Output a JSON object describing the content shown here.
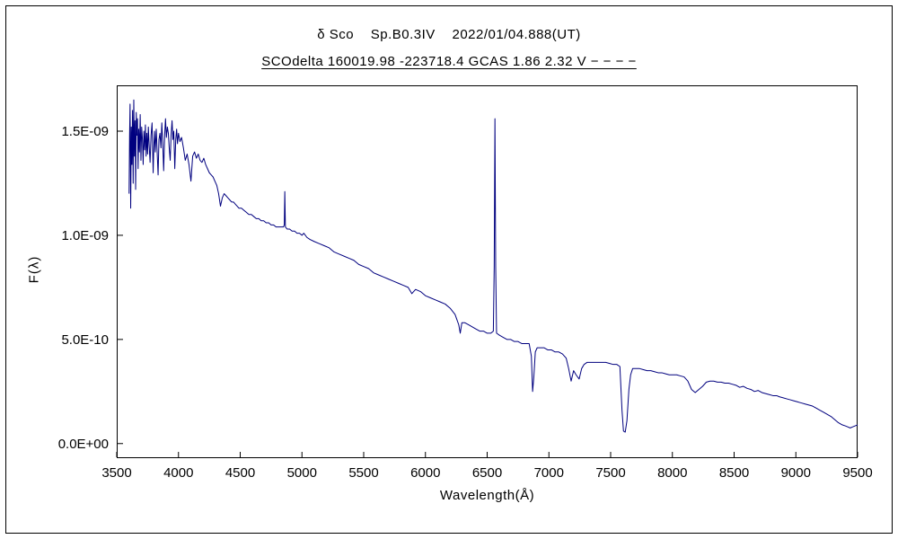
{
  "chart_data": {
    "type": "line",
    "title": "δ Sco    Sp.B0.3IV    2022/01/04.888(UT)",
    "subtitle": "SCOdelta 160019.98 -223718.4 GCAS 1.86 2.32 V − − − −",
    "xlabel": "Wavelength(Å)",
    "ylabel": "F(λ)",
    "line_color": "#00007f",
    "legend": "none",
    "grid": false,
    "xlim": [
      3500,
      9500
    ],
    "x_ticks": [
      3500,
      4000,
      4500,
      5000,
      5500,
      6000,
      6500,
      7000,
      7500,
      8000,
      8500,
      9000,
      9500
    ],
    "ylim_1e10": [
      -0.7,
      17.2
    ],
    "y_ticks": [
      {
        "value_1e10": 0,
        "label": "0.0E+00"
      },
      {
        "value_1e10": 5,
        "label": "5.0E-10"
      },
      {
        "value_1e10": 10,
        "label": "1.0E-09"
      },
      {
        "value_1e10": 15,
        "label": "1.5E-09"
      }
    ],
    "flux_unit_scale": "1e-10",
    "points": [
      [
        3600,
        12.0
      ],
      [
        3604,
        14.8
      ],
      [
        3608,
        16.3
      ],
      [
        3613,
        11.3
      ],
      [
        3618,
        15.2
      ],
      [
        3623,
        13.4
      ],
      [
        3628,
        16.0
      ],
      [
        3633,
        12.5
      ],
      [
        3638,
        16.5
      ],
      [
        3643,
        13.8
      ],
      [
        3648,
        15.5
      ],
      [
        3653,
        12.2
      ],
      [
        3658,
        15.9
      ],
      [
        3663,
        14.8
      ],
      [
        3668,
        15.6
      ],
      [
        3673,
        13.2
      ],
      [
        3678,
        15.1
      ],
      [
        3684,
        14.0
      ],
      [
        3690,
        15.8
      ],
      [
        3696,
        13.6
      ],
      [
        3702,
        15.2
      ],
      [
        3708,
        14.6
      ],
      [
        3714,
        13.4
      ],
      [
        3720,
        15.0
      ],
      [
        3726,
        14.1
      ],
      [
        3732,
        15.3
      ],
      [
        3738,
        13.8
      ],
      [
        3744,
        14.9
      ],
      [
        3750,
        13.9
      ],
      [
        3756,
        15.2
      ],
      [
        3762,
        14.4
      ],
      [
        3770,
        13.5
      ],
      [
        3778,
        14.8
      ],
      [
        3786,
        15.4
      ],
      [
        3795,
        13.0
      ],
      [
        3800,
        14.2
      ],
      [
        3806,
        15.0
      ],
      [
        3812,
        14.0
      ],
      [
        3820,
        15.1
      ],
      [
        3828,
        13.9
      ],
      [
        3835,
        12.9
      ],
      [
        3842,
        14.6
      ],
      [
        3850,
        14.9
      ],
      [
        3858,
        14.2
      ],
      [
        3865,
        15.4
      ],
      [
        3872,
        14.5
      ],
      [
        3880,
        13.1
      ],
      [
        3888,
        14.8
      ],
      [
        3895,
        15.6
      ],
      [
        3902,
        14.7
      ],
      [
        3910,
        15.2
      ],
      [
        3918,
        14.9
      ],
      [
        3925,
        14.2
      ],
      [
        3933,
        13.6
      ],
      [
        3940,
        14.8
      ],
      [
        3948,
        15.5
      ],
      [
        3955,
        14.6
      ],
      [
        3962,
        15.0
      ],
      [
        3970,
        13.2
      ],
      [
        3978,
        14.6
      ],
      [
        3985,
        15.1
      ],
      [
        3992,
        14.4
      ],
      [
        4000,
        14.9
      ],
      [
        4012,
        14.5
      ],
      [
        4025,
        14.7
      ],
      [
        4040,
        14.2
      ],
      [
        4055,
        13.6
      ],
      [
        4070,
        13.9
      ],
      [
        4085,
        13.4
      ],
      [
        4101,
        12.6
      ],
      [
        4115,
        13.8
      ],
      [
        4130,
        14.0
      ],
      [
        4145,
        13.7
      ],
      [
        4160,
        13.9
      ],
      [
        4175,
        13.6
      ],
      [
        4190,
        13.5
      ],
      [
        4205,
        13.7
      ],
      [
        4220,
        13.4
      ],
      [
        4235,
        13.2
      ],
      [
        4250,
        13.0
      ],
      [
        4265,
        12.9
      ],
      [
        4280,
        12.8
      ],
      [
        4295,
        12.6
      ],
      [
        4310,
        12.4
      ],
      [
        4325,
        12.0
      ],
      [
        4340,
        11.4
      ],
      [
        4355,
        11.8
      ],
      [
        4370,
        12.0
      ],
      [
        4385,
        11.9
      ],
      [
        4400,
        11.8
      ],
      [
        4415,
        11.7
      ],
      [
        4430,
        11.6
      ],
      [
        4445,
        11.6
      ],
      [
        4460,
        11.5
      ],
      [
        4475,
        11.4
      ],
      [
        4490,
        11.3
      ],
      [
        4510,
        11.3
      ],
      [
        4530,
        11.2
      ],
      [
        4550,
        11.1
      ],
      [
        4570,
        11.0
      ],
      [
        4590,
        11.0
      ],
      [
        4610,
        10.9
      ],
      [
        4630,
        10.8
      ],
      [
        4650,
        10.8
      ],
      [
        4670,
        10.7
      ],
      [
        4690,
        10.7
      ],
      [
        4710,
        10.6
      ],
      [
        4730,
        10.6
      ],
      [
        4750,
        10.5
      ],
      [
        4770,
        10.5
      ],
      [
        4790,
        10.4
      ],
      [
        4810,
        10.4
      ],
      [
        4830,
        10.4
      ],
      [
        4850,
        10.4
      ],
      [
        4857,
        10.5
      ],
      [
        4861,
        12.1
      ],
      [
        4866,
        10.4
      ],
      [
        4880,
        10.3
      ],
      [
        4900,
        10.3
      ],
      [
        4920,
        10.2
      ],
      [
        4940,
        10.2
      ],
      [
        4960,
        10.1
      ],
      [
        4980,
        10.1
      ],
      [
        5000,
        10.0
      ],
      [
        5015,
        10.1
      ],
      [
        5040,
        9.9
      ],
      [
        5065,
        9.8
      ],
      [
        5100,
        9.7
      ],
      [
        5140,
        9.6
      ],
      [
        5180,
        9.5
      ],
      [
        5220,
        9.4
      ],
      [
        5260,
        9.2
      ],
      [
        5300,
        9.1
      ],
      [
        5340,
        9.0
      ],
      [
        5380,
        8.9
      ],
      [
        5420,
        8.8
      ],
      [
        5460,
        8.6
      ],
      [
        5500,
        8.5
      ],
      [
        5540,
        8.4
      ],
      [
        5580,
        8.2
      ],
      [
        5620,
        8.1
      ],
      [
        5660,
        8.0
      ],
      [
        5700,
        7.9
      ],
      [
        5740,
        7.8
      ],
      [
        5780,
        7.7
      ],
      [
        5820,
        7.6
      ],
      [
        5860,
        7.5
      ],
      [
        5890,
        7.2
      ],
      [
        5920,
        7.4
      ],
      [
        5960,
        7.3
      ],
      [
        6000,
        7.1
      ],
      [
        6040,
        7.0
      ],
      [
        6080,
        6.9
      ],
      [
        6120,
        6.8
      ],
      [
        6160,
        6.7
      ],
      [
        6200,
        6.5
      ],
      [
        6240,
        6.2
      ],
      [
        6270,
        5.7
      ],
      [
        6282,
        5.3
      ],
      [
        6295,
        5.8
      ],
      [
        6320,
        5.8
      ],
      [
        6350,
        5.7
      ],
      [
        6380,
        5.6
      ],
      [
        6410,
        5.5
      ],
      [
        6440,
        5.4
      ],
      [
        6470,
        5.4
      ],
      [
        6500,
        5.3
      ],
      [
        6530,
        5.3
      ],
      [
        6550,
        5.4
      ],
      [
        6557,
        8.5
      ],
      [
        6563,
        15.6
      ],
      [
        6569,
        8.5
      ],
      [
        6576,
        5.3
      ],
      [
        6600,
        5.2
      ],
      [
        6630,
        5.1
      ],
      [
        6660,
        5.0
      ],
      [
        6690,
        5.0
      ],
      [
        6720,
        4.9
      ],
      [
        6750,
        4.9
      ],
      [
        6780,
        4.8
      ],
      [
        6810,
        4.8
      ],
      [
        6840,
        4.8
      ],
      [
        6858,
        4.2
      ],
      [
        6868,
        2.5
      ],
      [
        6878,
        3.2
      ],
      [
        6890,
        4.4
      ],
      [
        6905,
        4.6
      ],
      [
        6930,
        4.6
      ],
      [
        6960,
        4.6
      ],
      [
        6990,
        4.5
      ],
      [
        7020,
        4.5
      ],
      [
        7050,
        4.4
      ],
      [
        7080,
        4.4
      ],
      [
        7110,
        4.3
      ],
      [
        7140,
        4.1
      ],
      [
        7160,
        3.6
      ],
      [
        7180,
        3.0
      ],
      [
        7200,
        3.5
      ],
      [
        7220,
        3.3
      ],
      [
        7245,
        3.1
      ],
      [
        7265,
        3.6
      ],
      [
        7285,
        3.8
      ],
      [
        7310,
        3.9
      ],
      [
        7340,
        3.9
      ],
      [
        7370,
        3.9
      ],
      [
        7400,
        3.9
      ],
      [
        7430,
        3.9
      ],
      [
        7460,
        3.9
      ],
      [
        7490,
        3.85
      ],
      [
        7520,
        3.8
      ],
      [
        7550,
        3.8
      ],
      [
        7575,
        3.7
      ],
      [
        7592,
        1.6
      ],
      [
        7604,
        0.6
      ],
      [
        7618,
        0.55
      ],
      [
        7632,
        1.1
      ],
      [
        7648,
        2.6
      ],
      [
        7662,
        3.3
      ],
      [
        7678,
        3.6
      ],
      [
        7705,
        3.6
      ],
      [
        7735,
        3.6
      ],
      [
        7765,
        3.55
      ],
      [
        7795,
        3.5
      ],
      [
        7825,
        3.5
      ],
      [
        7855,
        3.45
      ],
      [
        7885,
        3.4
      ],
      [
        7915,
        3.4
      ],
      [
        7945,
        3.35
      ],
      [
        7975,
        3.3
      ],
      [
        8005,
        3.3
      ],
      [
        8035,
        3.3
      ],
      [
        8065,
        3.25
      ],
      [
        8095,
        3.2
      ],
      [
        8125,
        3.0
      ],
      [
        8155,
        2.6
      ],
      [
        8185,
        2.45
      ],
      [
        8215,
        2.6
      ],
      [
        8245,
        2.75
      ],
      [
        8275,
        2.95
      ],
      [
        8305,
        3.0
      ],
      [
        8335,
        3.0
      ],
      [
        8365,
        2.95
      ],
      [
        8395,
        2.95
      ],
      [
        8425,
        2.9
      ],
      [
        8455,
        2.9
      ],
      [
        8485,
        2.85
      ],
      [
        8515,
        2.8
      ],
      [
        8545,
        2.7
      ],
      [
        8575,
        2.75
      ],
      [
        8605,
        2.65
      ],
      [
        8635,
        2.6
      ],
      [
        8665,
        2.5
      ],
      [
        8695,
        2.55
      ],
      [
        8725,
        2.45
      ],
      [
        8755,
        2.4
      ],
      [
        8785,
        2.35
      ],
      [
        8815,
        2.3
      ],
      [
        8845,
        2.3
      ],
      [
        8865,
        2.25
      ],
      [
        8895,
        2.2
      ],
      [
        8925,
        2.15
      ],
      [
        8955,
        2.1
      ],
      [
        8985,
        2.05
      ],
      [
        9015,
        2.0
      ],
      [
        9045,
        1.95
      ],
      [
        9075,
        1.9
      ],
      [
        9105,
        1.85
      ],
      [
        9135,
        1.8
      ],
      [
        9165,
        1.7
      ],
      [
        9195,
        1.6
      ],
      [
        9225,
        1.5
      ],
      [
        9255,
        1.4
      ],
      [
        9285,
        1.3
      ],
      [
        9315,
        1.15
      ],
      [
        9345,
        1.0
      ],
      [
        9375,
        0.9
      ],
      [
        9400,
        0.85
      ],
      [
        9420,
        0.8
      ],
      [
        9440,
        0.75
      ],
      [
        9460,
        0.8
      ],
      [
        9480,
        0.85
      ],
      [
        9500,
        0.9
      ]
    ]
  }
}
